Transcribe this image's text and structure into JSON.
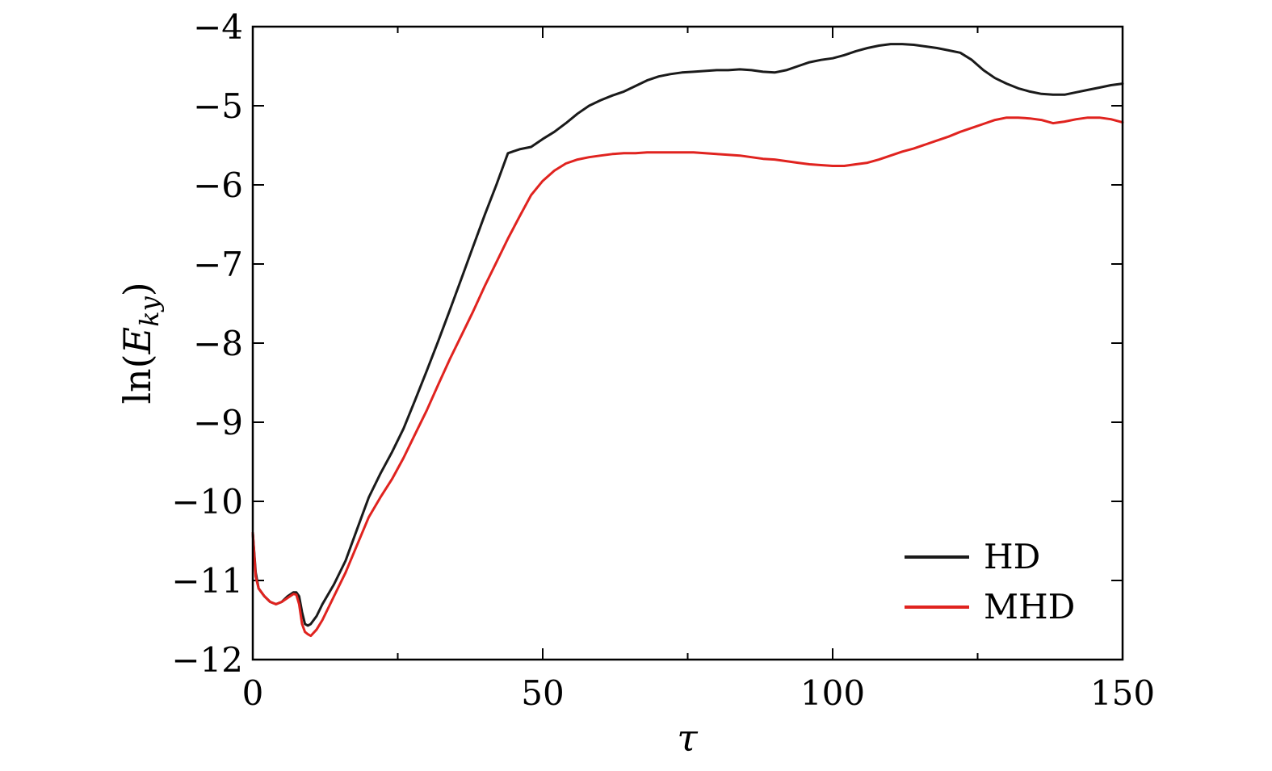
{
  "chart_data": {
    "type": "line",
    "xlabel": "τ",
    "ylabel": "ln(E_ky)",
    "ylabel_parts": {
      "prefix": "ln(",
      "var": "E",
      "subscript": "ky",
      "suffix": ")"
    },
    "xlim": [
      0,
      150
    ],
    "ylim": [
      -12,
      -4
    ],
    "x_ticks": [
      0,
      50,
      100,
      150
    ],
    "x_tick_labels": [
      "0",
      "50",
      "100",
      "150"
    ],
    "y_ticks": [
      -12,
      -11,
      -10,
      -9,
      -8,
      -7,
      -6,
      -5,
      -4
    ],
    "y_tick_labels": [
      "−12",
      "−11",
      "−10",
      "−9",
      "−8",
      "−7",
      "−6",
      "−5",
      "−4"
    ],
    "grid": false,
    "legend_position": "bottom-right",
    "series": [
      {
        "name": "HD",
        "color": "#1a1a1a",
        "x": [
          0,
          0.5,
          1,
          2,
          3,
          4,
          5,
          6,
          7,
          7.5,
          8,
          8.5,
          9,
          9.5,
          10,
          11,
          12,
          14,
          16,
          18,
          20,
          22,
          24,
          26,
          28,
          30,
          32,
          34,
          36,
          38,
          40,
          42,
          44,
          46,
          48,
          50,
          52,
          54,
          56,
          58,
          60,
          62,
          64,
          66,
          68,
          70,
          72,
          74,
          76,
          78,
          80,
          82,
          84,
          86,
          88,
          90,
          92,
          94,
          96,
          98,
          100,
          102,
          104,
          106,
          108,
          110,
          112,
          114,
          116,
          118,
          120,
          122,
          124,
          126,
          128,
          130,
          132,
          134,
          136,
          138,
          140,
          142,
          144,
          146,
          148,
          150
        ],
        "y": [
          -10.4,
          -10.9,
          -11.1,
          -11.2,
          -11.27,
          -11.3,
          -11.27,
          -11.2,
          -11.15,
          -11.15,
          -11.2,
          -11.4,
          -11.55,
          -11.57,
          -11.55,
          -11.45,
          -11.3,
          -11.05,
          -10.75,
          -10.35,
          -9.95,
          -9.65,
          -9.38,
          -9.08,
          -8.72,
          -8.35,
          -7.97,
          -7.58,
          -7.18,
          -6.78,
          -6.38,
          -6.0,
          -5.6,
          -5.55,
          -5.52,
          -5.42,
          -5.33,
          -5.22,
          -5.1,
          -5.0,
          -4.93,
          -4.87,
          -4.82,
          -4.75,
          -4.68,
          -4.63,
          -4.6,
          -4.58,
          -4.57,
          -4.56,
          -4.55,
          -4.55,
          -4.54,
          -4.55,
          -4.57,
          -4.58,
          -4.55,
          -4.5,
          -4.45,
          -4.42,
          -4.4,
          -4.36,
          -4.31,
          -4.27,
          -4.24,
          -4.22,
          -4.22,
          -4.23,
          -4.25,
          -4.27,
          -4.3,
          -4.33,
          -4.42,
          -4.55,
          -4.65,
          -4.72,
          -4.78,
          -4.82,
          -4.85,
          -4.86,
          -4.86,
          -4.83,
          -4.8,
          -4.77,
          -4.74,
          -4.72
        ]
      },
      {
        "name": "MHD",
        "color": "#e0231f",
        "x": [
          0,
          0.5,
          1,
          2,
          3,
          4,
          5,
          6,
          7,
          7.5,
          8,
          8.5,
          9,
          9.5,
          10,
          11,
          12,
          14,
          16,
          18,
          20,
          22,
          24,
          26,
          28,
          30,
          32,
          34,
          36,
          38,
          40,
          42,
          44,
          46,
          48,
          50,
          52,
          54,
          56,
          58,
          60,
          62,
          64,
          66,
          68,
          70,
          72,
          74,
          76,
          78,
          80,
          82,
          84,
          86,
          88,
          90,
          92,
          94,
          96,
          98,
          100,
          102,
          104,
          106,
          108,
          110,
          112,
          114,
          116,
          118,
          120,
          122,
          124,
          126,
          128,
          130,
          132,
          134,
          136,
          138,
          140,
          142,
          144,
          146,
          148,
          150
        ],
        "y": [
          -10.4,
          -10.95,
          -11.1,
          -11.2,
          -11.27,
          -11.3,
          -11.27,
          -11.22,
          -11.17,
          -11.18,
          -11.3,
          -11.55,
          -11.65,
          -11.68,
          -11.7,
          -11.62,
          -11.5,
          -11.2,
          -10.9,
          -10.55,
          -10.2,
          -9.95,
          -9.72,
          -9.45,
          -9.15,
          -8.85,
          -8.52,
          -8.2,
          -7.9,
          -7.6,
          -7.28,
          -6.98,
          -6.68,
          -6.4,
          -6.13,
          -5.95,
          -5.82,
          -5.73,
          -5.68,
          -5.65,
          -5.63,
          -5.61,
          -5.6,
          -5.6,
          -5.59,
          -5.59,
          -5.59,
          -5.59,
          -5.59,
          -5.6,
          -5.61,
          -5.62,
          -5.63,
          -5.65,
          -5.67,
          -5.68,
          -5.7,
          -5.72,
          -5.74,
          -5.75,
          -5.76,
          -5.76,
          -5.74,
          -5.72,
          -5.68,
          -5.63,
          -5.58,
          -5.54,
          -5.49,
          -5.44,
          -5.39,
          -5.33,
          -5.28,
          -5.23,
          -5.18,
          -5.15,
          -5.15,
          -5.16,
          -5.18,
          -5.22,
          -5.2,
          -5.17,
          -5.15,
          -5.15,
          -5.17,
          -5.21
        ]
      }
    ]
  }
}
